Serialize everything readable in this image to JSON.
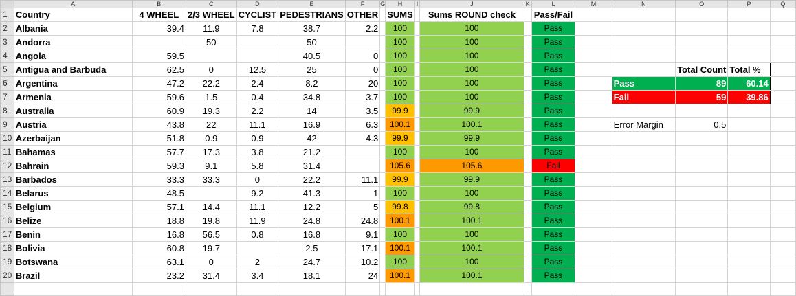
{
  "columns": [
    "A",
    "B",
    "C",
    "D",
    "E",
    "F",
    "G",
    "H",
    "I",
    "J",
    "K",
    "L",
    "M",
    "N",
    "O",
    "P",
    "Q"
  ],
  "headers": {
    "country": "Country",
    "w4": "4 WHEEL",
    "w23": "2/3 WHEEL",
    "cyclist": "CYCLIST",
    "ped": "PEDESTRIANS",
    "other": "OTHER",
    "sums": "SUMS",
    "round": "Sums ROUND check",
    "pf": "Pass/Fail"
  },
  "rows": [
    {
      "n": "2",
      "country": "Albania",
      "w4": "39.4",
      "w23": "11.9",
      "cyc": "7.8",
      "ped": "38.7",
      "oth": "2.2",
      "sum": "100",
      "rnd": "100",
      "pf": "Pass"
    },
    {
      "n": "3",
      "country": "Andorra",
      "w4": "",
      "w23": "50",
      "cyc": "",
      "ped": "50",
      "oth": "",
      "sum": "100",
      "rnd": "100",
      "pf": "Pass"
    },
    {
      "n": "4",
      "country": "Angola",
      "w4": "59.5",
      "w23": "",
      "cyc": "",
      "ped": "40.5",
      "oth": "0",
      "sum": "100",
      "rnd": "100",
      "pf": "Pass"
    },
    {
      "n": "5",
      "country": "Antigua and Barbuda",
      "w4": "62.5",
      "w23": "0",
      "cyc": "12.5",
      "ped": "25",
      "oth": "0",
      "sum": "100",
      "rnd": "100",
      "pf": "Pass"
    },
    {
      "n": "6",
      "country": "Argentina",
      "w4": "47.2",
      "w23": "22.2",
      "cyc": "2.4",
      "ped": "8.2",
      "oth": "20",
      "sum": "100",
      "rnd": "100",
      "pf": "Pass"
    },
    {
      "n": "7",
      "country": "Armenia",
      "w4": "59.6",
      "w23": "1.5",
      "cyc": "0.4",
      "ped": "34.8",
      "oth": "3.7",
      "sum": "100",
      "rnd": "100",
      "pf": "Pass"
    },
    {
      "n": "8",
      "country": "Australia",
      "w4": "60.9",
      "w23": "19.3",
      "cyc": "2.2",
      "ped": "14",
      "oth": "3.5",
      "sum": "99.9",
      "rnd": "99.9",
      "pf": "Pass"
    },
    {
      "n": "9",
      "country": "Austria",
      "w4": "43.8",
      "w23": "22",
      "cyc": "11.1",
      "ped": "16.9",
      "oth": "6.3",
      "sum": "100.1",
      "rnd": "100.1",
      "pf": "Pass"
    },
    {
      "n": "10",
      "country": "Azerbaijan",
      "w4": "51.8",
      "w23": "0.9",
      "cyc": "0.9",
      "ped": "42",
      "oth": "4.3",
      "sum": "99.9",
      "rnd": "99.9",
      "pf": "Pass"
    },
    {
      "n": "11",
      "country": "Bahamas",
      "w4": "57.7",
      "w23": "17.3",
      "cyc": "3.8",
      "ped": "21.2",
      "oth": "",
      "sum": "100",
      "rnd": "100",
      "pf": "Pass"
    },
    {
      "n": "12",
      "country": "Bahrain",
      "w4": "59.3",
      "w23": "9.1",
      "cyc": "5.8",
      "ped": "31.4",
      "oth": "",
      "sum": "105.6",
      "rnd": "105.6",
      "pf": "Fail"
    },
    {
      "n": "13",
      "country": "Barbados",
      "w4": "33.3",
      "w23": "33.3",
      "cyc": "0",
      "ped": "22.2",
      "oth": "11.1",
      "sum": "99.9",
      "rnd": "99.9",
      "pf": "Pass"
    },
    {
      "n": "14",
      "country": "Belarus",
      "w4": "48.5",
      "w23": "",
      "cyc": "9.2",
      "ped": "41.3",
      "oth": "1",
      "sum": "100",
      "rnd": "100",
      "pf": "Pass"
    },
    {
      "n": "15",
      "country": "Belgium",
      "w4": "57.1",
      "w23": "14.4",
      "cyc": "11.1",
      "ped": "12.2",
      "oth": "5",
      "sum": "99.8",
      "rnd": "99.8",
      "pf": "Pass"
    },
    {
      "n": "16",
      "country": "Belize",
      "w4": "18.8",
      "w23": "19.8",
      "cyc": "11.9",
      "ped": "24.8",
      "oth": "24.8",
      "sum": "100.1",
      "rnd": "100.1",
      "pf": "Pass"
    },
    {
      "n": "17",
      "country": "Benin",
      "w4": "16.8",
      "w23": "56.5",
      "cyc": "0.8",
      "ped": "16.8",
      "oth": "9.1",
      "sum": "100",
      "rnd": "100",
      "pf": "Pass"
    },
    {
      "n": "18",
      "country": "Bolivia",
      "w4": "60.8",
      "w23": "19.7",
      "cyc": "",
      "ped": "2.5",
      "oth": "17.1",
      "sum": "100.1",
      "rnd": "100.1",
      "pf": "Pass"
    },
    {
      "n": "19",
      "country": "Botswana",
      "w4": "63.1",
      "w23": "0",
      "cyc": "2",
      "ped": "24.7",
      "oth": "10.2",
      "sum": "100",
      "rnd": "100",
      "pf": "Pass"
    },
    {
      "n": "20",
      "country": "Brazil",
      "w4": "23.2",
      "w23": "31.4",
      "cyc": "3.4",
      "ped": "18.1",
      "oth": "24",
      "sum": "100.1",
      "rnd": "100.1",
      "pf": "Pass"
    },
    {
      "n": "",
      "country": "",
      "w4": "",
      "w23": "",
      "cyc": "",
      "ped": "",
      "oth": "",
      "sum": "",
      "rnd": "",
      "pf": ""
    }
  ],
  "summary": {
    "total_count_label": "Total Count",
    "total_pct_label": "Total %",
    "pass_label": "Pass",
    "pass_count": "89",
    "pass_pct": "60.14",
    "fail_label": "Fail",
    "fail_count": "59",
    "fail_pct": "39.86",
    "error_margin_label": "Error Margin",
    "error_margin_value": "0.5"
  },
  "colors": {
    "sum_ok": "#92d050",
    "sum_low": "#ffc000",
    "sum_high": "#ff9900",
    "pass": "#00b050",
    "fail": "#ff0000"
  }
}
